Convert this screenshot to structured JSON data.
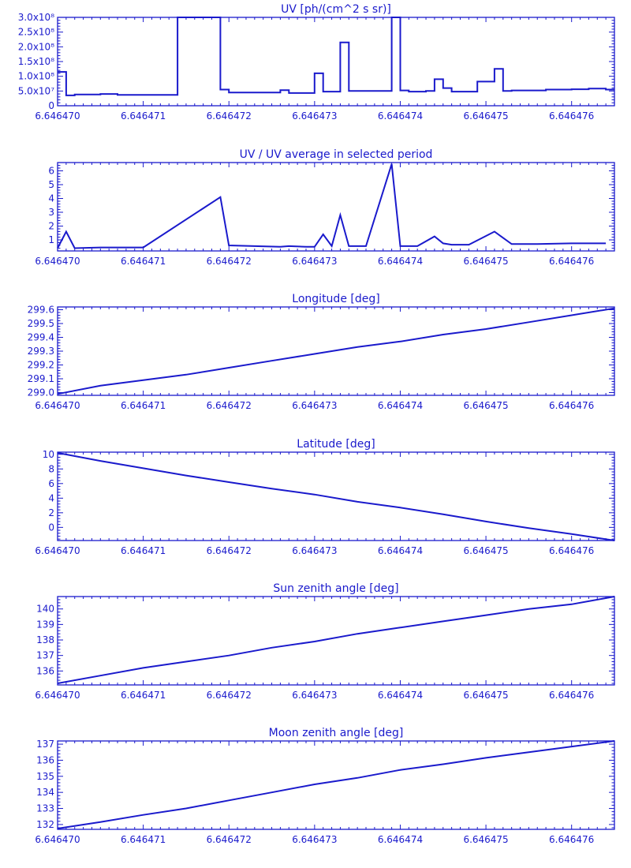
{
  "colors": {
    "ink": "#1a1acc",
    "background": "#ffffff"
  },
  "x_axis": {
    "ticks": [
      6.64647,
      6.646471,
      6.646472,
      6.646473,
      6.646474,
      6.646475,
      6.646476
    ],
    "tick_labels": [
      "6.646470",
      "6.646471",
      "6.646472",
      "6.646473",
      "6.646474",
      "6.646475",
      "6.646476"
    ],
    "range": [
      6.64647,
      6.6464765
    ]
  },
  "chart_data": [
    {
      "type": "line",
      "step": true,
      "title": "UV [ph/(cm^2 s sr)]",
      "ylim": [
        0,
        300000000
      ],
      "yticks": [
        0,
        50000000,
        100000000,
        150000000,
        200000000,
        250000000,
        300000000
      ],
      "ytick_labels": [
        "0",
        "5.0x10⁷",
        "1.0x10⁸",
        "1.5x10⁸",
        "2.0x10⁸",
        "2.5x10⁸",
        "3.0x10⁸"
      ],
      "x": [
        6.64647,
        6.6464701,
        6.6464702,
        6.6464705,
        6.6464707,
        6.646471,
        6.6464714,
        6.6464719,
        6.646472,
        6.6464726,
        6.6464727,
        6.646473,
        6.6464731,
        6.6464733,
        6.6464734,
        6.6464739,
        6.646474,
        6.6464741,
        6.6464743,
        6.6464744,
        6.6464745,
        6.6464746,
        6.6464748,
        6.6464749,
        6.6464751,
        6.6464752,
        6.6464753,
        6.6464757,
        6.646476,
        6.6464762,
        6.6464764
      ],
      "values": [
        115000000,
        35000000,
        38000000,
        40000000,
        37000000,
        37000000,
        300000000,
        55000000,
        45000000,
        53000000,
        43000000,
        110000000,
        48000000,
        215000000,
        50000000,
        300000000,
        52000000,
        48000000,
        50000000,
        90000000,
        60000000,
        48000000,
        48000000,
        82000000,
        125000000,
        50000000,
        52000000,
        55000000,
        56000000,
        58000000,
        55000000
      ]
    },
    {
      "type": "line",
      "title": "UV / UV average in selected period",
      "ylim": [
        0.2,
        6.6
      ],
      "yticks": [
        1,
        2,
        3,
        4,
        5,
        6
      ],
      "ytick_labels": [
        "1",
        "2",
        "3",
        "4",
        "5",
        "6"
      ],
      "x": [
        6.64647,
        6.6464701,
        6.6464702,
        6.6464705,
        6.6464707,
        6.646471,
        6.6464719,
        6.646472,
        6.6464726,
        6.6464727,
        6.6464729,
        6.646473,
        6.6464731,
        6.6464732,
        6.6464733,
        6.6464734,
        6.6464736,
        6.6464739,
        6.646474,
        6.6464742,
        6.6464744,
        6.6464745,
        6.6464746,
        6.6464748,
        6.6464751,
        6.6464753,
        6.6464756,
        6.646476,
        6.6464764
      ],
      "values": [
        0.4,
        1.6,
        0.4,
        0.45,
        0.45,
        0.45,
        4.1,
        0.6,
        0.5,
        0.55,
        0.5,
        0.5,
        1.4,
        0.55,
        2.8,
        0.55,
        0.55,
        6.5,
        0.55,
        0.55,
        1.25,
        0.75,
        0.65,
        0.65,
        1.6,
        0.7,
        0.7,
        0.75,
        0.75
      ]
    },
    {
      "type": "line",
      "title": "Longitude [deg]",
      "ylim": [
        298.98,
        299.62
      ],
      "yticks": [
        299.0,
        299.1,
        299.2,
        299.3,
        299.4,
        299.5,
        299.6
      ],
      "ytick_labels": [
        "299.0",
        "299.1",
        "299.2",
        "299.3",
        "299.4",
        "299.5",
        "299.6"
      ],
      "x": [
        6.64647,
        6.6464705,
        6.646471,
        6.6464715,
        6.646472,
        6.6464725,
        6.646473,
        6.6464735,
        6.646474,
        6.6464745,
        6.646475,
        6.6464755,
        6.646476,
        6.6464765
      ],
      "values": [
        298.99,
        299.05,
        299.09,
        299.13,
        299.18,
        299.23,
        299.28,
        299.33,
        299.37,
        299.42,
        299.46,
        299.51,
        299.56,
        299.61
      ]
    },
    {
      "type": "line",
      "title": "Latitude [deg]",
      "ylim": [
        -1.8,
        10.3
      ],
      "yticks": [
        0,
        2,
        4,
        6,
        8,
        10
      ],
      "ytick_labels": [
        "0",
        "2",
        "4",
        "6",
        "8",
        "10"
      ],
      "x": [
        6.64647,
        6.6464705,
        6.646471,
        6.6464715,
        6.646472,
        6.6464725,
        6.646473,
        6.6464735,
        6.646474,
        6.6464745,
        6.646475,
        6.6464755,
        6.646476,
        6.6464765
      ],
      "values": [
        10.2,
        9.1,
        8.1,
        7.1,
        6.2,
        5.3,
        4.5,
        3.5,
        2.7,
        1.8,
        0.8,
        -0.1,
        -0.9,
        -1.8
      ]
    },
    {
      "type": "line",
      "title": "Sun zenith angle [deg]",
      "ylim": [
        135.1,
        140.8
      ],
      "yticks": [
        136,
        137,
        138,
        139,
        140
      ],
      "ytick_labels": [
        "136",
        "137",
        "138",
        "139",
        "140"
      ],
      "x": [
        6.64647,
        6.6464705,
        6.646471,
        6.6464715,
        6.646472,
        6.6464725,
        6.646473,
        6.6464735,
        6.646474,
        6.6464745,
        6.646475,
        6.6464755,
        6.646476,
        6.6464765
      ],
      "values": [
        135.2,
        135.7,
        136.2,
        136.6,
        137.0,
        137.5,
        137.9,
        138.4,
        138.8,
        139.2,
        139.6,
        140.0,
        140.3,
        140.8
      ]
    },
    {
      "type": "line",
      "title": "Moon zenith angle [deg]",
      "ylim": [
        131.7,
        137.2
      ],
      "yticks": [
        132,
        133,
        134,
        135,
        136,
        137
      ],
      "ytick_labels": [
        "132",
        "133",
        "134",
        "135",
        "136",
        "137"
      ],
      "x": [
        6.64647,
        6.6464705,
        6.646471,
        6.6464715,
        6.646472,
        6.6464725,
        6.646473,
        6.6464735,
        6.646474,
        6.6464745,
        6.646475,
        6.6464755,
        6.646476,
        6.6464765
      ],
      "values": [
        131.75,
        132.15,
        132.6,
        133.0,
        133.5,
        134.0,
        134.5,
        134.9,
        135.4,
        135.75,
        136.15,
        136.5,
        136.85,
        137.2
      ]
    }
  ]
}
